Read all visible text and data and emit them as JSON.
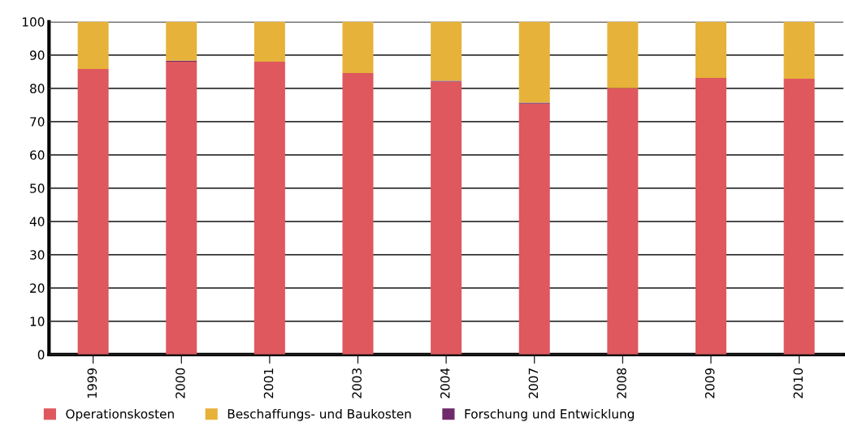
{
  "chart_data": {
    "type": "bar",
    "stacked": true,
    "categories": [
      "1999",
      "2000",
      "2001",
      "2003",
      "2004",
      "2007",
      "2008",
      "2009",
      "2010"
    ],
    "series": [
      {
        "name": "Operationskosten",
        "color": "#de585e",
        "values": [
          85.8,
          88.0,
          88.0,
          84.6,
          82.0,
          75.4,
          80.1,
          83.1,
          82.9
        ]
      },
      {
        "name": "Forschung und Entwicklung",
        "color": "#6f2a6b",
        "values": [
          0,
          0.3,
          0,
          0,
          0.3,
          0.3,
          0,
          0,
          0
        ]
      },
      {
        "name": "Beschaffungs- und Baukosten",
        "color": "#e6b23a",
        "values": [
          14.2,
          11.7,
          12.0,
          15.4,
          17.7,
          24.3,
          19.9,
          16.9,
          17.1
        ]
      }
    ],
    "ylim": [
      0,
      100
    ],
    "yticks": [
      0,
      10,
      20,
      30,
      40,
      50,
      60,
      70,
      80,
      90,
      100
    ],
    "grid": "y",
    "legend": "bottom"
  }
}
